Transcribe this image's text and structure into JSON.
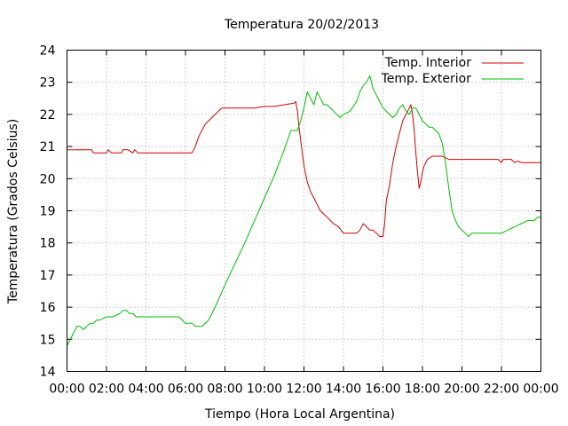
{
  "chart_data": {
    "type": "line",
    "title": "Temperatura 20/02/2013",
    "xlabel": "Tiempo (Hora Local Argentina)",
    "ylabel": "Temperatura (Grados Celsius)",
    "ylim": [
      14,
      24
    ],
    "xlim": [
      "00:00",
      "24:00"
    ],
    "x_tick_labels": [
      "00:00",
      "02:00",
      "04:00",
      "06:00",
      "08:00",
      "10:00",
      "12:00",
      "14:00",
      "16:00",
      "18:00",
      "20:00",
      "22:00",
      "00:00"
    ],
    "y_tick_labels": [
      "14",
      "15",
      "16",
      "17",
      "18",
      "19",
      "20",
      "21",
      "22",
      "23",
      "24"
    ],
    "grid": true,
    "legend_position": "top-right",
    "series": [
      {
        "name": "Temp. Interior",
        "color": "#cc0000",
        "x": [
          "00:00",
          "01:15",
          "01:20",
          "02:00",
          "02:05",
          "02:15",
          "02:20",
          "02:45",
          "02:50",
          "03:05",
          "03:20",
          "03:25",
          "03:35",
          "03:40",
          "04:00",
          "04:30",
          "05:00",
          "05:30",
          "06:00",
          "06:10",
          "06:20",
          "06:30",
          "06:40",
          "06:50",
          "07:00",
          "07:10",
          "07:20",
          "07:30",
          "07:40",
          "07:50",
          "08:00",
          "08:30",
          "09:00",
          "09:30",
          "10:00",
          "10:30",
          "11:00",
          "11:30",
          "11:35",
          "11:40",
          "11:45",
          "11:50",
          "11:55",
          "12:00",
          "12:10",
          "12:20",
          "12:30",
          "12:40",
          "12:50",
          "13:00",
          "13:10",
          "13:20",
          "13:30",
          "13:45",
          "14:00",
          "14:20",
          "14:40",
          "14:50",
          "15:00",
          "15:10",
          "15:20",
          "15:30",
          "15:40",
          "15:50",
          "16:00",
          "16:05",
          "16:10",
          "16:20",
          "16:30",
          "16:40",
          "16:50",
          "17:00",
          "17:10",
          "17:20",
          "17:25",
          "17:30",
          "17:35",
          "17:40",
          "17:45",
          "17:50",
          "17:55",
          "18:00",
          "18:05",
          "18:15",
          "18:30",
          "18:45",
          "19:00",
          "19:20",
          "19:30",
          "20:00",
          "21:00",
          "21:50",
          "22:00",
          "22:05",
          "22:30",
          "22:40",
          "22:50",
          "23:00",
          "24:00"
        ],
        "values": [
          20.9,
          20.9,
          20.8,
          20.8,
          20.9,
          20.8,
          20.8,
          20.8,
          20.9,
          20.9,
          20.8,
          20.9,
          20.8,
          20.8,
          20.8,
          20.8,
          20.8,
          20.8,
          20.8,
          20.8,
          20.8,
          21.0,
          21.3,
          21.5,
          21.7,
          21.8,
          21.9,
          22.0,
          22.1,
          22.2,
          22.2,
          22.2,
          22.2,
          22.2,
          22.25,
          22.25,
          22.3,
          22.35,
          22.4,
          22.1,
          21.6,
          21.2,
          20.8,
          20.4,
          19.9,
          19.6,
          19.4,
          19.2,
          19.0,
          18.9,
          18.8,
          18.7,
          18.6,
          18.5,
          18.3,
          18.3,
          18.3,
          18.4,
          18.6,
          18.5,
          18.4,
          18.4,
          18.3,
          18.2,
          18.2,
          18.6,
          19.3,
          19.8,
          20.5,
          21.0,
          21.4,
          21.8,
          22.0,
          22.2,
          22.3,
          22.0,
          21.5,
          20.8,
          20.2,
          19.7,
          19.9,
          20.2,
          20.4,
          20.6,
          20.7,
          20.7,
          20.7,
          20.6,
          20.6,
          20.6,
          20.6,
          20.6,
          20.5,
          20.6,
          20.6,
          20.5,
          20.55,
          20.5,
          20.5
        ]
      },
      {
        "name": "Temp. Exterior",
        "color": "#00bb00",
        "x": [
          "00:00",
          "00:10",
          "00:20",
          "00:30",
          "00:40",
          "00:50",
          "01:00",
          "01:10",
          "01:20",
          "01:30",
          "01:40",
          "02:00",
          "02:20",
          "02:40",
          "02:50",
          "03:00",
          "03:10",
          "03:20",
          "03:30",
          "04:00",
          "05:00",
          "05:40",
          "05:50",
          "06:00",
          "06:20",
          "06:30",
          "06:40",
          "06:50",
          "07:00",
          "07:10",
          "07:30",
          "08:00",
          "09:00",
          "10:00",
          "10:30",
          "11:00",
          "11:10",
          "11:20",
          "11:30",
          "11:40",
          "11:50",
          "12:00",
          "12:10",
          "12:20",
          "12:30",
          "12:40",
          "12:50",
          "13:00",
          "13:10",
          "13:20",
          "13:30",
          "13:40",
          "13:50",
          "14:00",
          "14:20",
          "14:40",
          "14:50",
          "15:00",
          "15:10",
          "15:20",
          "15:30",
          "15:40",
          "15:50",
          "16:00",
          "16:10",
          "16:20",
          "16:30",
          "16:40",
          "16:50",
          "17:00",
          "17:10",
          "17:20",
          "17:30",
          "17:40",
          "17:50",
          "18:00",
          "18:10",
          "18:20",
          "18:30",
          "18:40",
          "18:50",
          "19:00",
          "19:10",
          "19:20",
          "19:30",
          "19:40",
          "19:50",
          "20:00",
          "20:10",
          "20:20",
          "20:30",
          "20:40",
          "21:00",
          "22:00",
          "22:20",
          "22:40",
          "23:00",
          "23:20",
          "23:40",
          "23:50",
          "24:00"
        ],
        "values": [
          14.8,
          15.0,
          15.2,
          15.4,
          15.4,
          15.3,
          15.4,
          15.5,
          15.5,
          15.6,
          15.6,
          15.7,
          15.7,
          15.8,
          15.9,
          15.9,
          15.8,
          15.8,
          15.7,
          15.7,
          15.7,
          15.7,
          15.6,
          15.5,
          15.5,
          15.4,
          15.4,
          15.4,
          15.5,
          15.6,
          16.0,
          16.7,
          18.0,
          19.4,
          20.1,
          20.9,
          21.2,
          21.5,
          21.5,
          21.5,
          21.8,
          22.2,
          22.7,
          22.5,
          22.3,
          22.7,
          22.5,
          22.3,
          22.3,
          22.2,
          22.1,
          22.0,
          21.9,
          22.0,
          22.1,
          22.4,
          22.7,
          22.9,
          23.0,
          23.2,
          22.8,
          22.6,
          22.4,
          22.2,
          22.1,
          22.0,
          21.9,
          22.0,
          22.2,
          22.3,
          22.1,
          22.0,
          22.2,
          22.2,
          22.0,
          21.8,
          21.7,
          21.6,
          21.6,
          21.5,
          21.4,
          21.1,
          20.5,
          19.7,
          19.0,
          18.7,
          18.5,
          18.4,
          18.3,
          18.2,
          18.3,
          18.3,
          18.3,
          18.3,
          18.4,
          18.5,
          18.6,
          18.7,
          18.7,
          18.8,
          18.8
        ]
      }
    ]
  }
}
